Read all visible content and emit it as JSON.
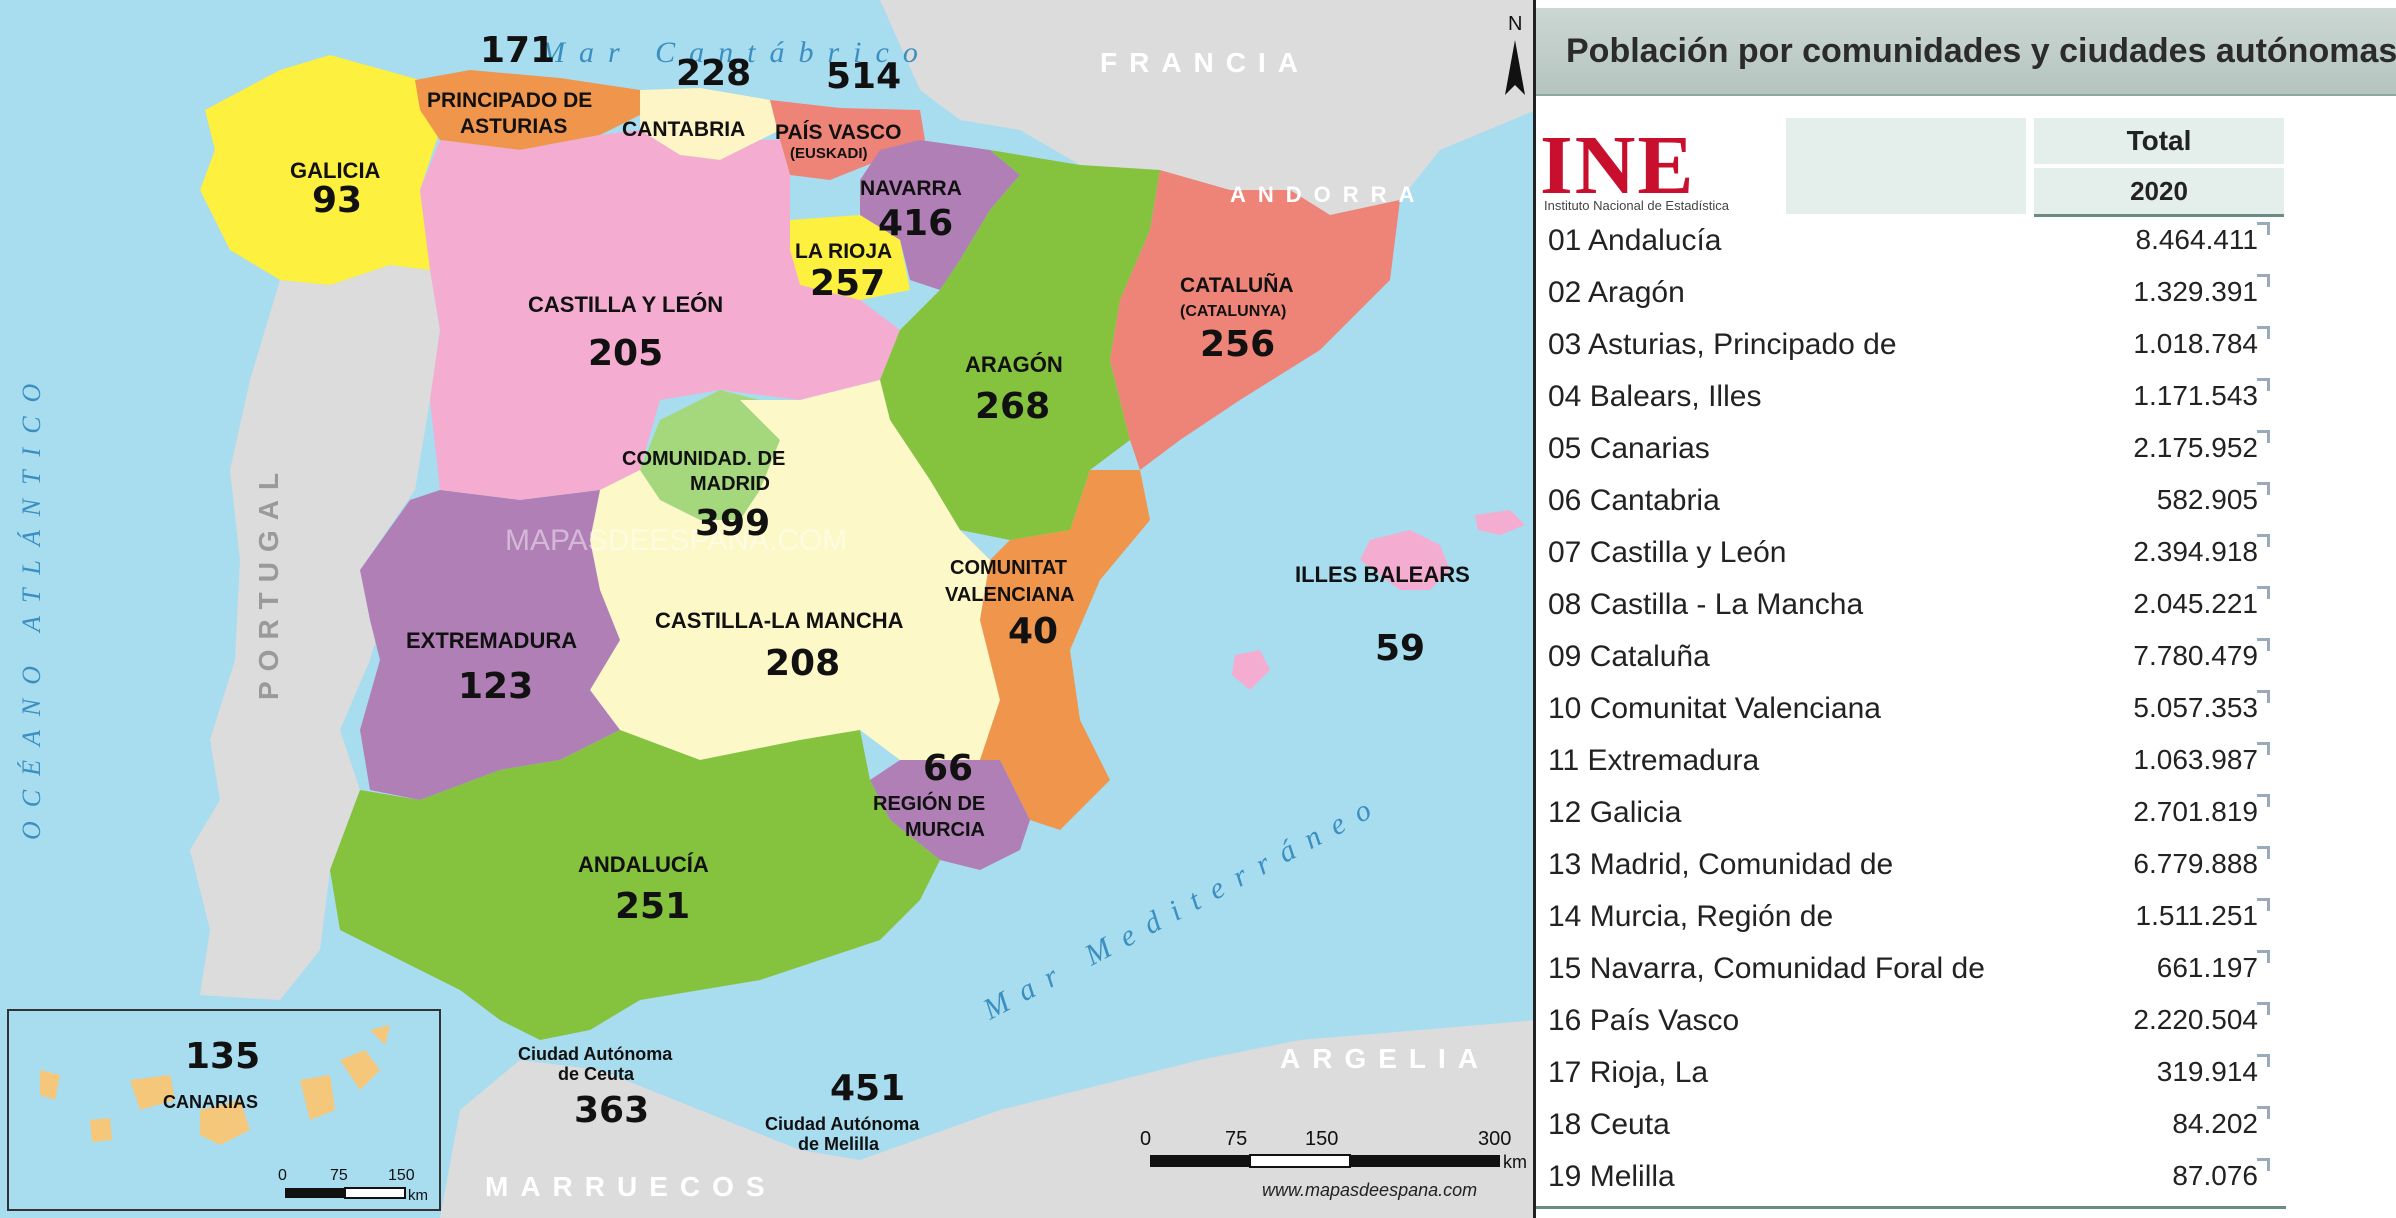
{
  "map": {
    "labels": {
      "galicia": "GALICIA",
      "asturias_1": "PRINCIPADO DE",
      "asturias_2": "ASTURIAS",
      "cantabria": "CANTABRIA",
      "paisvasco_1": "PAÍS VASCO",
      "paisvasco_2": "(EUSKADI)",
      "navarra": "NAVARRA",
      "larioja": "LA RIOJA",
      "castillaleon": "CASTILLA Y LEÓN",
      "aragon": "ARAGÓN",
      "cataluna_1": "CATALUÑA",
      "cataluna_2": "(CATALUNYA)",
      "madrid_1": "COMUNIDAD. DE",
      "madrid_2": "MADRID",
      "valencia_1": "COMUNITAT",
      "valencia_2": "VALENCIANA",
      "baleares": "ILLES BALEARS",
      "extremadura": "EXTREMADURA",
      "castillamancha": "CASTILLA-LA MANCHA",
      "murcia_1": "REGIÓN DE",
      "murcia_2": "MURCIA",
      "andalucia": "ANDALUCÍA",
      "canarias": "CANARIAS",
      "ceuta_1": "Ciudad Autónoma",
      "ceuta_2": "de Ceuta",
      "melilla_1": "Ciudad Autónoma",
      "melilla_2": "de Melilla"
    },
    "numbers": {
      "asturias": "171",
      "cantabria": "228",
      "paisvasco": "514",
      "galicia": "93",
      "navarra": "416",
      "larioja": "257",
      "castillaleon": "205",
      "aragon": "268",
      "cataluna": "256",
      "madrid": "399",
      "valencia": "40",
      "baleares": "59",
      "extremadura": "123",
      "castillamancha": "208",
      "murcia": "66",
      "andalucia": "251",
      "canarias": "135",
      "ceuta": "363",
      "melilla": "451"
    },
    "geo": {
      "cantabrico": "Mar Cantábrico",
      "atlantico": "OCÉANO ATLÁNTICO",
      "mediterraneo": "Mar Mediterráneo",
      "francia": "FRANCIA",
      "andorra": "ANDORRA",
      "portugal": "PORTUGAL",
      "argelia": "ARGELIA",
      "marruecos": "MARRUECOS",
      "north": "N",
      "watermark": "MAPASDEESPANA.COM",
      "website": "www.mapasdeespana.com"
    },
    "scale": {
      "ticks": [
        "0",
        "75",
        "150",
        "300"
      ],
      "unit": "km",
      "inset_ticks": [
        "0",
        "75",
        "150"
      ]
    },
    "colors": {
      "sea": "#a8dcef",
      "land_foreign": "#dcdcdc",
      "galicia": "#fdf03e",
      "asturias": "#f0954c",
      "cantabria": "#fdf5c5",
      "paisvasco": "#ee8478",
      "navarra": "#b07fb6",
      "larioja": "#fdf03e",
      "castillaleon": "#f4add0",
      "aragon": "#85c23d",
      "cataluna": "#ee8478",
      "madrid": "#a5d87c",
      "valencia": "#f0954c",
      "baleares": "#f4add0",
      "extremadura": "#b07fb6",
      "castillamancha": "#fdf8c8",
      "murcia": "#b07fb6",
      "andalucia": "#85c23d",
      "canarias": "#f5c77a"
    }
  },
  "table": {
    "title": "Población por comunidades y ciudades autónomas",
    "logo_text": "INE",
    "logo_sub": "Instituto Nacional de Estadística",
    "header_total": "Total",
    "header_year": "2020",
    "rows": [
      {
        "name": "01 Andalucía",
        "value": "8.464.411"
      },
      {
        "name": "02 Aragón",
        "value": "1.329.391"
      },
      {
        "name": "03 Asturias, Principado de",
        "value": "1.018.784"
      },
      {
        "name": "04 Balears, Illes",
        "value": "1.171.543"
      },
      {
        "name": "05 Canarias",
        "value": "2.175.952"
      },
      {
        "name": "06 Cantabria",
        "value": "582.905"
      },
      {
        "name": "07 Castilla y León",
        "value": "2.394.918"
      },
      {
        "name": "08 Castilla - La Mancha",
        "value": "2.045.221"
      },
      {
        "name": "09 Cataluña",
        "value": "7.780.479"
      },
      {
        "name": "10 Comunitat Valenciana",
        "value": "5.057.353"
      },
      {
        "name": "11 Extremadura",
        "value": "1.063.987"
      },
      {
        "name": "12 Galicia",
        "value": "2.701.819"
      },
      {
        "name": "13 Madrid, Comunidad de",
        "value": "6.779.888"
      },
      {
        "name": "14 Murcia, Región de",
        "value": "1.511.251"
      },
      {
        "name": "15 Navarra, Comunidad Foral de",
        "value": "661.197"
      },
      {
        "name": "16 País Vasco",
        "value": "2.220.504"
      },
      {
        "name": "17 Rioja, La",
        "value": "319.914"
      },
      {
        "name": "18 Ceuta",
        "value": "84.202"
      },
      {
        "name": "19 Melilla",
        "value": "87.076"
      }
    ]
  }
}
